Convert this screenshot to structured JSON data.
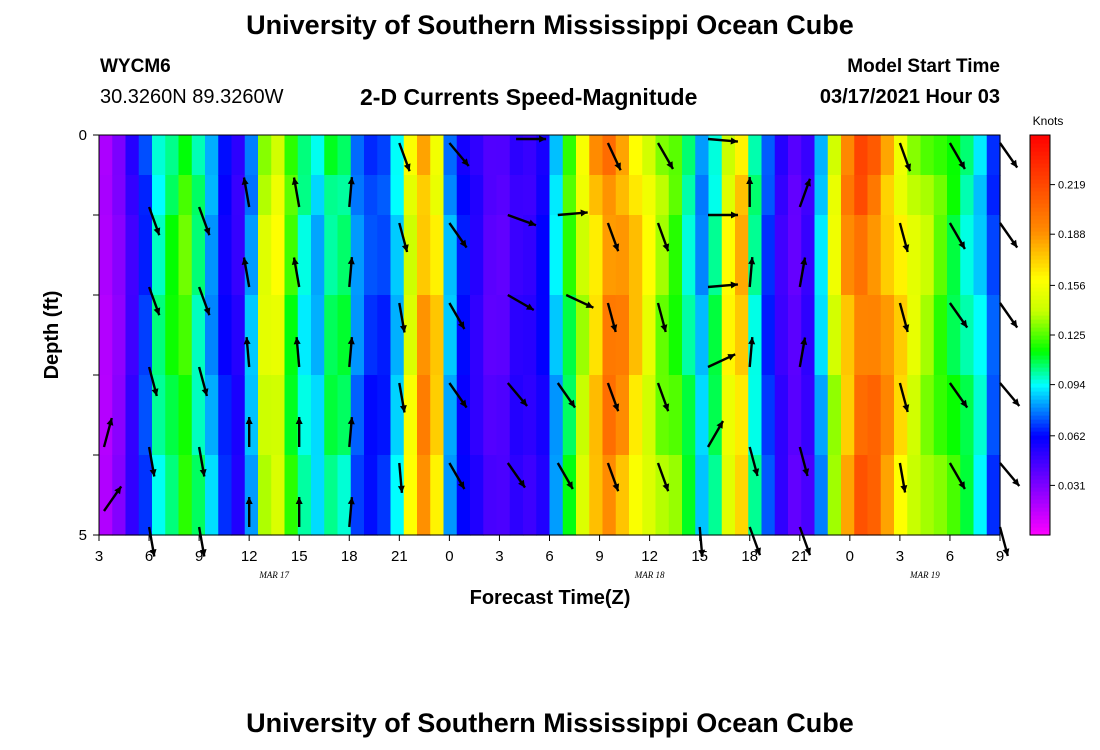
{
  "header": {
    "title": "University of Southern Mississippi Ocean Cube",
    "station": "WYCM6",
    "coordinates": "30.3260N 89.3260W",
    "subtitle": "2-D Currents Speed-Magnitude",
    "model_start_label": "Model Start Time",
    "model_start_value": "03/17/2021 Hour 03"
  },
  "footer": {
    "title": "University of Southern Mississippi Ocean Cube"
  },
  "chart_data": {
    "type": "heatmap",
    "xlabel": "Forecast Time(Z)",
    "ylabel": "Depth (ft)",
    "x_range_hours": [
      0,
      54
    ],
    "ylim": [
      0,
      5
    ],
    "y_ticks": [
      0,
      1,
      2,
      3,
      4,
      5
    ],
    "y_tick_labels": [
      "0",
      "",
      "",
      "",
      "",
      "5"
    ],
    "x_tick_hours": [
      0,
      3,
      6,
      9,
      12,
      15,
      18,
      21,
      24,
      27,
      30,
      33,
      36,
      39,
      42,
      45,
      48,
      51,
      54
    ],
    "x_tick_labels": [
      "3",
      "6",
      "9",
      "12",
      "15",
      "18",
      "21",
      "0",
      "3",
      "6",
      "9",
      "12",
      "15",
      "18",
      "21",
      "0",
      "3",
      "6",
      "9"
    ],
    "date_labels": [
      {
        "hour": 10.5,
        "text": "MAR 17"
      },
      {
        "hour": 33,
        "text": "MAR 18"
      },
      {
        "hour": 49.5,
        "text": "MAR 19"
      }
    ],
    "colorbar": {
      "unit": "Knots",
      "tick_labels": [
        "0.031",
        "0.062",
        "0.094",
        "0.125",
        "0.156",
        "0.188",
        "0.219"
      ],
      "ticks": [
        0.031,
        0.062,
        0.094,
        0.125,
        0.156,
        0.188,
        0.219
      ],
      "range": [
        0.0,
        0.25
      ]
    },
    "layers_depth_ft": [
      0.25,
      0.75,
      1.75,
      2.75,
      3.75,
      4.75
    ],
    "time_speed_knots": [
      0.02,
      0.03,
      0.05,
      0.07,
      0.1,
      0.11,
      0.12,
      0.1,
      0.08,
      0.06,
      0.05,
      0.08,
      0.14,
      0.15,
      0.12,
      0.1,
      0.09,
      0.11,
      0.11,
      0.08,
      0.07,
      0.07,
      0.09,
      0.15,
      0.18,
      0.16,
      0.08,
      0.06,
      0.05,
      0.04,
      0.04,
      0.05,
      0.05,
      0.06,
      0.09,
      0.12,
      0.15,
      0.18,
      0.2,
      0.19,
      0.17,
      0.15,
      0.13,
      0.12,
      0.1,
      0.08,
      0.1,
      0.15,
      0.17,
      0.1,
      0.07,
      0.05,
      0.04,
      0.05,
      0.09,
      0.15,
      0.19,
      0.21,
      0.2,
      0.18,
      0.16,
      0.14,
      0.13,
      0.12,
      0.11,
      0.1,
      0.09,
      0.07
    ],
    "vectors": [
      {
        "hour": 0.3,
        "depth": 4.7,
        "angle": 35
      },
      {
        "hour": 0.3,
        "depth": 3.9,
        "angle": 15
      },
      {
        "hour": 3,
        "depth": 0.9,
        "angle": 160
      },
      {
        "hour": 6,
        "depth": 0.9,
        "angle": 160
      },
      {
        "hour": 9,
        "depth": 0.9,
        "angle": -10
      },
      {
        "hour": 12,
        "depth": 0.9,
        "angle": -10
      },
      {
        "hour": 15,
        "depth": 0.9,
        "angle": 5
      },
      {
        "hour": 3,
        "depth": 1.9,
        "angle": 160
      },
      {
        "hour": 6,
        "depth": 1.9,
        "angle": 160
      },
      {
        "hour": 9,
        "depth": 1.9,
        "angle": -10
      },
      {
        "hour": 12,
        "depth": 1.9,
        "angle": -10
      },
      {
        "hour": 15,
        "depth": 1.9,
        "angle": 5
      },
      {
        "hour": 3,
        "depth": 2.9,
        "angle": 165
      },
      {
        "hour": 6,
        "depth": 2.9,
        "angle": 165
      },
      {
        "hour": 9,
        "depth": 2.9,
        "angle": -5
      },
      {
        "hour": 12,
        "depth": 2.9,
        "angle": -5
      },
      {
        "hour": 15,
        "depth": 2.9,
        "angle": 5
      },
      {
        "hour": 3,
        "depth": 3.9,
        "angle": 170
      },
      {
        "hour": 6,
        "depth": 3.9,
        "angle": 170
      },
      {
        "hour": 9,
        "depth": 3.9,
        "angle": 0
      },
      {
        "hour": 12,
        "depth": 3.9,
        "angle": 0
      },
      {
        "hour": 15,
        "depth": 3.9,
        "angle": 5
      },
      {
        "hour": 3,
        "depth": 4.9,
        "angle": 170
      },
      {
        "hour": 6,
        "depth": 4.9,
        "angle": 170
      },
      {
        "hour": 9,
        "depth": 4.9,
        "angle": 0
      },
      {
        "hour": 12,
        "depth": 4.9,
        "angle": 0
      },
      {
        "hour": 15,
        "depth": 4.9,
        "angle": 5
      },
      {
        "hour": 18,
        "depth": 0.1,
        "angle": 160
      },
      {
        "hour": 21,
        "depth": 0.1,
        "angle": 140
      },
      {
        "hour": 25,
        "depth": 0.05,
        "angle": 90
      },
      {
        "hour": 30.5,
        "depth": 0.1,
        "angle": 155
      },
      {
        "hour": 33.5,
        "depth": 0.1,
        "angle": 150
      },
      {
        "hour": 36.5,
        "depth": 0.05,
        "angle": 95
      },
      {
        "hour": 48,
        "depth": 0.1,
        "angle": 160
      },
      {
        "hour": 51,
        "depth": 0.1,
        "angle": 150
      },
      {
        "hour": 54,
        "depth": 0.1,
        "angle": 145
      },
      {
        "hour": 18,
        "depth": 1.1,
        "angle": 165
      },
      {
        "hour": 21,
        "depth": 1.1,
        "angle": 145
      },
      {
        "hour": 24.5,
        "depth": 1.0,
        "angle": 110
      },
      {
        "hour": 27.5,
        "depth": 1.0,
        "angle": 85
      },
      {
        "hour": 30.5,
        "depth": 1.1,
        "angle": 160
      },
      {
        "hour": 33.5,
        "depth": 1.1,
        "angle": 160
      },
      {
        "hour": 36.5,
        "depth": 1.0,
        "angle": 90
      },
      {
        "hour": 39,
        "depth": 0.9,
        "angle": 0
      },
      {
        "hour": 42,
        "depth": 0.9,
        "angle": 20
      },
      {
        "hour": 48,
        "depth": 1.1,
        "angle": 165
      },
      {
        "hour": 51,
        "depth": 1.1,
        "angle": 150
      },
      {
        "hour": 54,
        "depth": 1.1,
        "angle": 145
      },
      {
        "hour": 18,
        "depth": 2.1,
        "angle": 170
      },
      {
        "hour": 21,
        "depth": 2.1,
        "angle": 150
      },
      {
        "hour": 24.5,
        "depth": 2.0,
        "angle": 120
      },
      {
        "hour": 28,
        "depth": 2.0,
        "angle": 115
      },
      {
        "hour": 30.5,
        "depth": 2.1,
        "angle": 165
      },
      {
        "hour": 33.5,
        "depth": 2.1,
        "angle": 165
      },
      {
        "hour": 36.5,
        "depth": 1.9,
        "angle": 85
      },
      {
        "hour": 39,
        "depth": 1.9,
        "angle": 5
      },
      {
        "hour": 42,
        "depth": 1.9,
        "angle": 10
      },
      {
        "hour": 48,
        "depth": 2.1,
        "angle": 165
      },
      {
        "hour": 51,
        "depth": 2.1,
        "angle": 145
      },
      {
        "hour": 54,
        "depth": 2.1,
        "angle": 145
      },
      {
        "hour": 18,
        "depth": 3.1,
        "angle": 170
      },
      {
        "hour": 21,
        "depth": 3.1,
        "angle": 145
      },
      {
        "hour": 24.5,
        "depth": 3.1,
        "angle": 140
      },
      {
        "hour": 27.5,
        "depth": 3.1,
        "angle": 145
      },
      {
        "hour": 30.5,
        "depth": 3.1,
        "angle": 160
      },
      {
        "hour": 33.5,
        "depth": 3.1,
        "angle": 160
      },
      {
        "hour": 36.5,
        "depth": 2.9,
        "angle": 65
      },
      {
        "hour": 39,
        "depth": 2.9,
        "angle": 5
      },
      {
        "hour": 42,
        "depth": 2.9,
        "angle": 10
      },
      {
        "hour": 48,
        "depth": 3.1,
        "angle": 165
      },
      {
        "hour": 51,
        "depth": 3.1,
        "angle": 145
      },
      {
        "hour": 54,
        "depth": 3.1,
        "angle": 140
      },
      {
        "hour": 18,
        "depth": 4.1,
        "angle": 175
      },
      {
        "hour": 21,
        "depth": 4.1,
        "angle": 150
      },
      {
        "hour": 24.5,
        "depth": 4.1,
        "angle": 145
      },
      {
        "hour": 27.5,
        "depth": 4.1,
        "angle": 150
      },
      {
        "hour": 30.5,
        "depth": 4.1,
        "angle": 160
      },
      {
        "hour": 33.5,
        "depth": 4.1,
        "angle": 160
      },
      {
        "hour": 36.5,
        "depth": 3.9,
        "angle": 30
      },
      {
        "hour": 39,
        "depth": 3.9,
        "angle": 165
      },
      {
        "hour": 42,
        "depth": 3.9,
        "angle": 165
      },
      {
        "hour": 48,
        "depth": 4.1,
        "angle": 170
      },
      {
        "hour": 51,
        "depth": 4.1,
        "angle": 150
      },
      {
        "hour": 54,
        "depth": 4.1,
        "angle": 140
      },
      {
        "hour": 36,
        "depth": 4.9,
        "angle": 175
      },
      {
        "hour": 39,
        "depth": 4.9,
        "angle": 160
      },
      {
        "hour": 42,
        "depth": 4.9,
        "angle": 160
      },
      {
        "hour": 54,
        "depth": 4.9,
        "angle": 165
      }
    ]
  }
}
